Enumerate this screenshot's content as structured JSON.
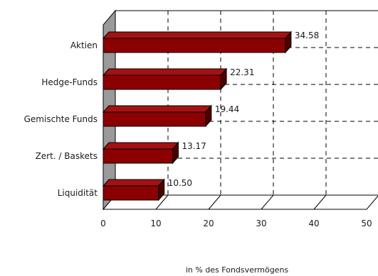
{
  "chart_data": {
    "type": "bar",
    "orientation": "horizontal",
    "style": "3d",
    "categories": [
      "Aktien",
      "Hedge-Funds",
      "Gemischte Funds",
      "Zert. / Baskets",
      "Liquidität"
    ],
    "values": [
      34.58,
      22.31,
      19.44,
      13.17,
      10.5
    ],
    "value_labels": [
      "34.58",
      "22.31",
      "19.44",
      "13.17",
      "10.50"
    ],
    "title": "",
    "xlabel": "in % des Fondsvermögens",
    "ylabel": "",
    "xlim": [
      0,
      50
    ],
    "xticks": [
      "0",
      "10",
      "20",
      "30",
      "40",
      "50"
    ],
    "grid": "dashed",
    "legend": "none",
    "colors": {
      "bar_front": "#8b0000",
      "bar_top": "#a31212",
      "bar_side": "#4d0000",
      "wall": "#9a9a9a",
      "grid": "#000000"
    }
  }
}
